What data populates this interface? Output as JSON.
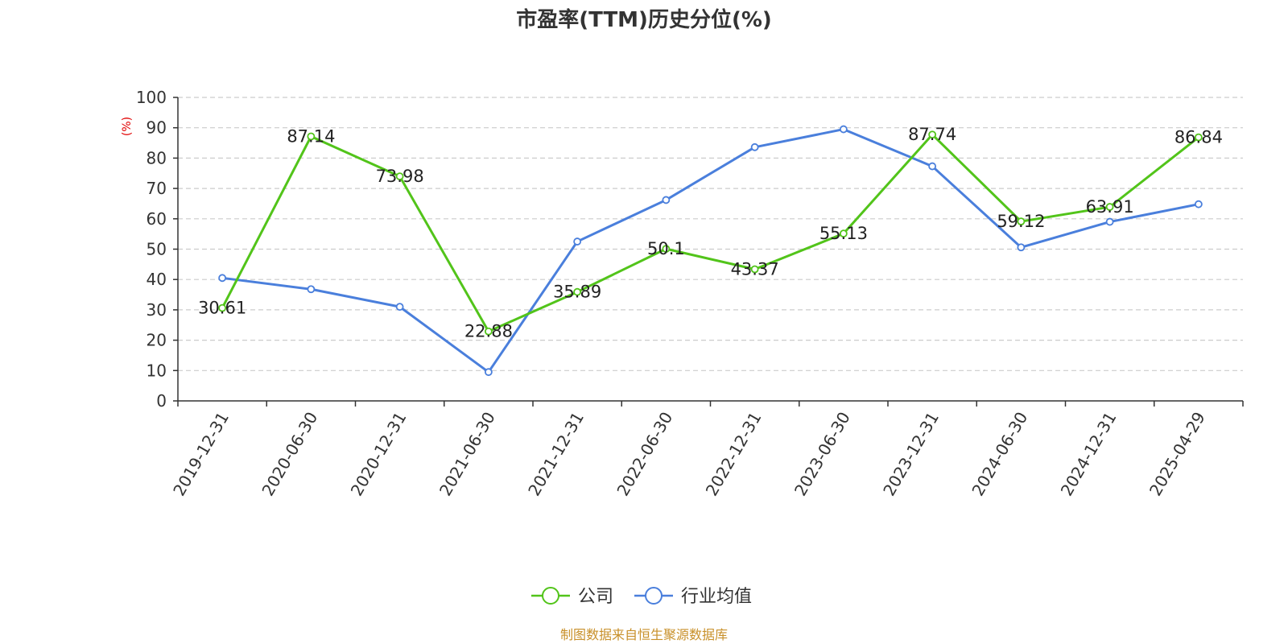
{
  "chart_data": {
    "type": "line",
    "title": "市盈率(TTM)历史分位(%)",
    "ylabel": "(%)",
    "ylim": [
      0,
      100
    ],
    "yticks": [
      0,
      10,
      20,
      30,
      40,
      50,
      60,
      70,
      80,
      90,
      100
    ],
    "grid": true,
    "legend_position": "bottom-center",
    "categories": [
      "2019-12-31",
      "2020-06-30",
      "2020-12-31",
      "2021-06-30",
      "2021-12-31",
      "2022-06-30",
      "2022-12-31",
      "2023-06-30",
      "2023-12-31",
      "2024-06-30",
      "2024-12-31",
      "2025-04-29"
    ],
    "series": [
      {
        "name": "公司",
        "color": "#52c41a",
        "values": [
          30.61,
          87.14,
          73.98,
          22.88,
          35.89,
          50.1,
          43.37,
          55.13,
          87.74,
          59.12,
          63.91,
          86.84
        ],
        "labels": [
          "30.61",
          "87.14",
          "73.98",
          "22.88",
          "35.89",
          "50.1",
          "43.37",
          "55.13",
          "87.74",
          "59.12",
          "63.91",
          "86.84"
        ]
      },
      {
        "name": "行业均值",
        "color": "#4a7fdc",
        "values": [
          40.5,
          36.8,
          31.0,
          9.5,
          52.5,
          66.2,
          83.6,
          89.5,
          77.3,
          50.6,
          59.0,
          64.8
        ]
      }
    ],
    "source": "制图数据来自恒生聚源数据库",
    "colors": {
      "ylabel": "#e00000",
      "source": "#c8902a",
      "grid": "#cccccc",
      "axis": "#333333"
    }
  }
}
